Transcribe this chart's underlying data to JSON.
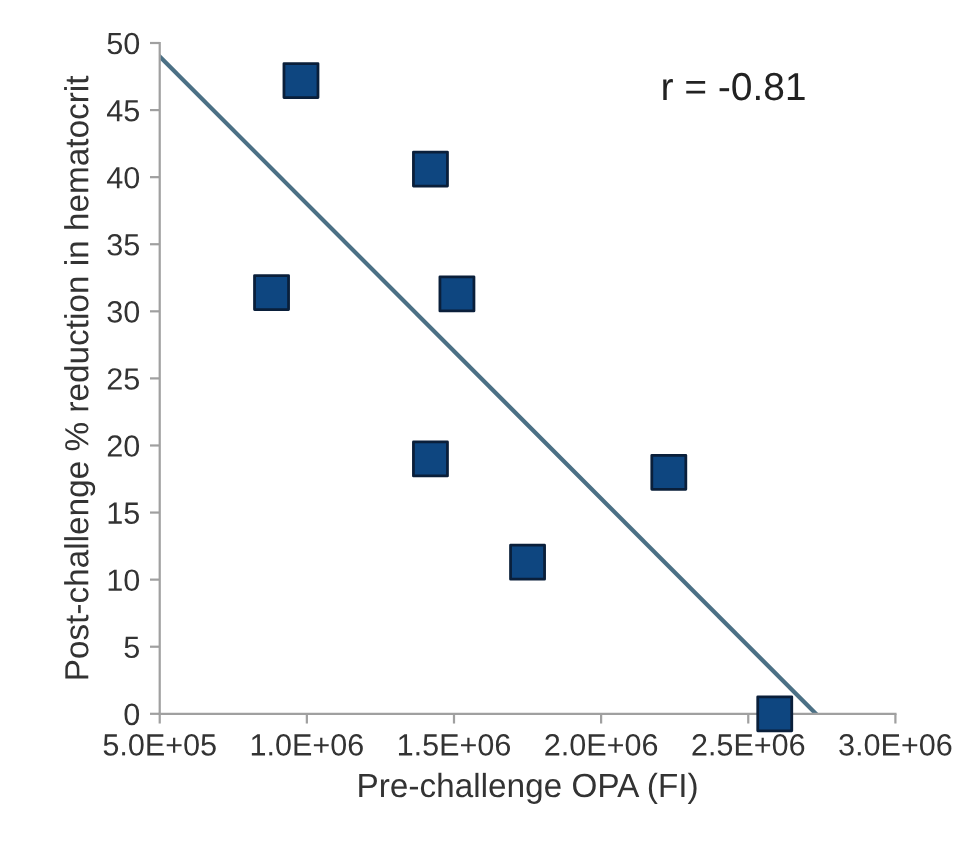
{
  "chart_data": {
    "type": "scatter",
    "xlabel": "Pre-challenge OPA (FI)",
    "ylabel": "Post-challenge % reduction in hematocrit",
    "annotations": [
      "r = -0.81"
    ],
    "series": [
      {
        "color": "#0e4680",
        "marker": "square",
        "x": [
          980000,
          880000,
          1420000,
          1510000,
          1420000,
          1750000,
          2230000,
          2590000
        ],
        "values": [
          47.2,
          31.4,
          40.6,
          31.3,
          19.0,
          11.3,
          18.0,
          0
        ]
      },
      {
        "type": "line",
        "color": "#4b7085",
        "marker": "none",
        "x": [
          500000,
          2730000
        ],
        "values": [
          49.0,
          0
        ]
      }
    ],
    "xlim": [
      500000,
      3000000
    ],
    "xticks": [
      {
        "value": 500000,
        "label": "5.0E+05"
      },
      {
        "value": 1000000,
        "label": "1.0E+06"
      },
      {
        "value": 1500000,
        "label": "1.5E+06"
      },
      {
        "value": 2000000,
        "label": "2.0E+06"
      },
      {
        "value": 2500000,
        "label": "2.5E+06"
      },
      {
        "value": 3000000,
        "label": "3.0E+06"
      }
    ],
    "ylim": [
      0,
      50
    ],
    "yticks": [
      0,
      5,
      10,
      15,
      20,
      25,
      30,
      35,
      40,
      45,
      50
    ],
    "grid": false,
    "legend": false
  }
}
